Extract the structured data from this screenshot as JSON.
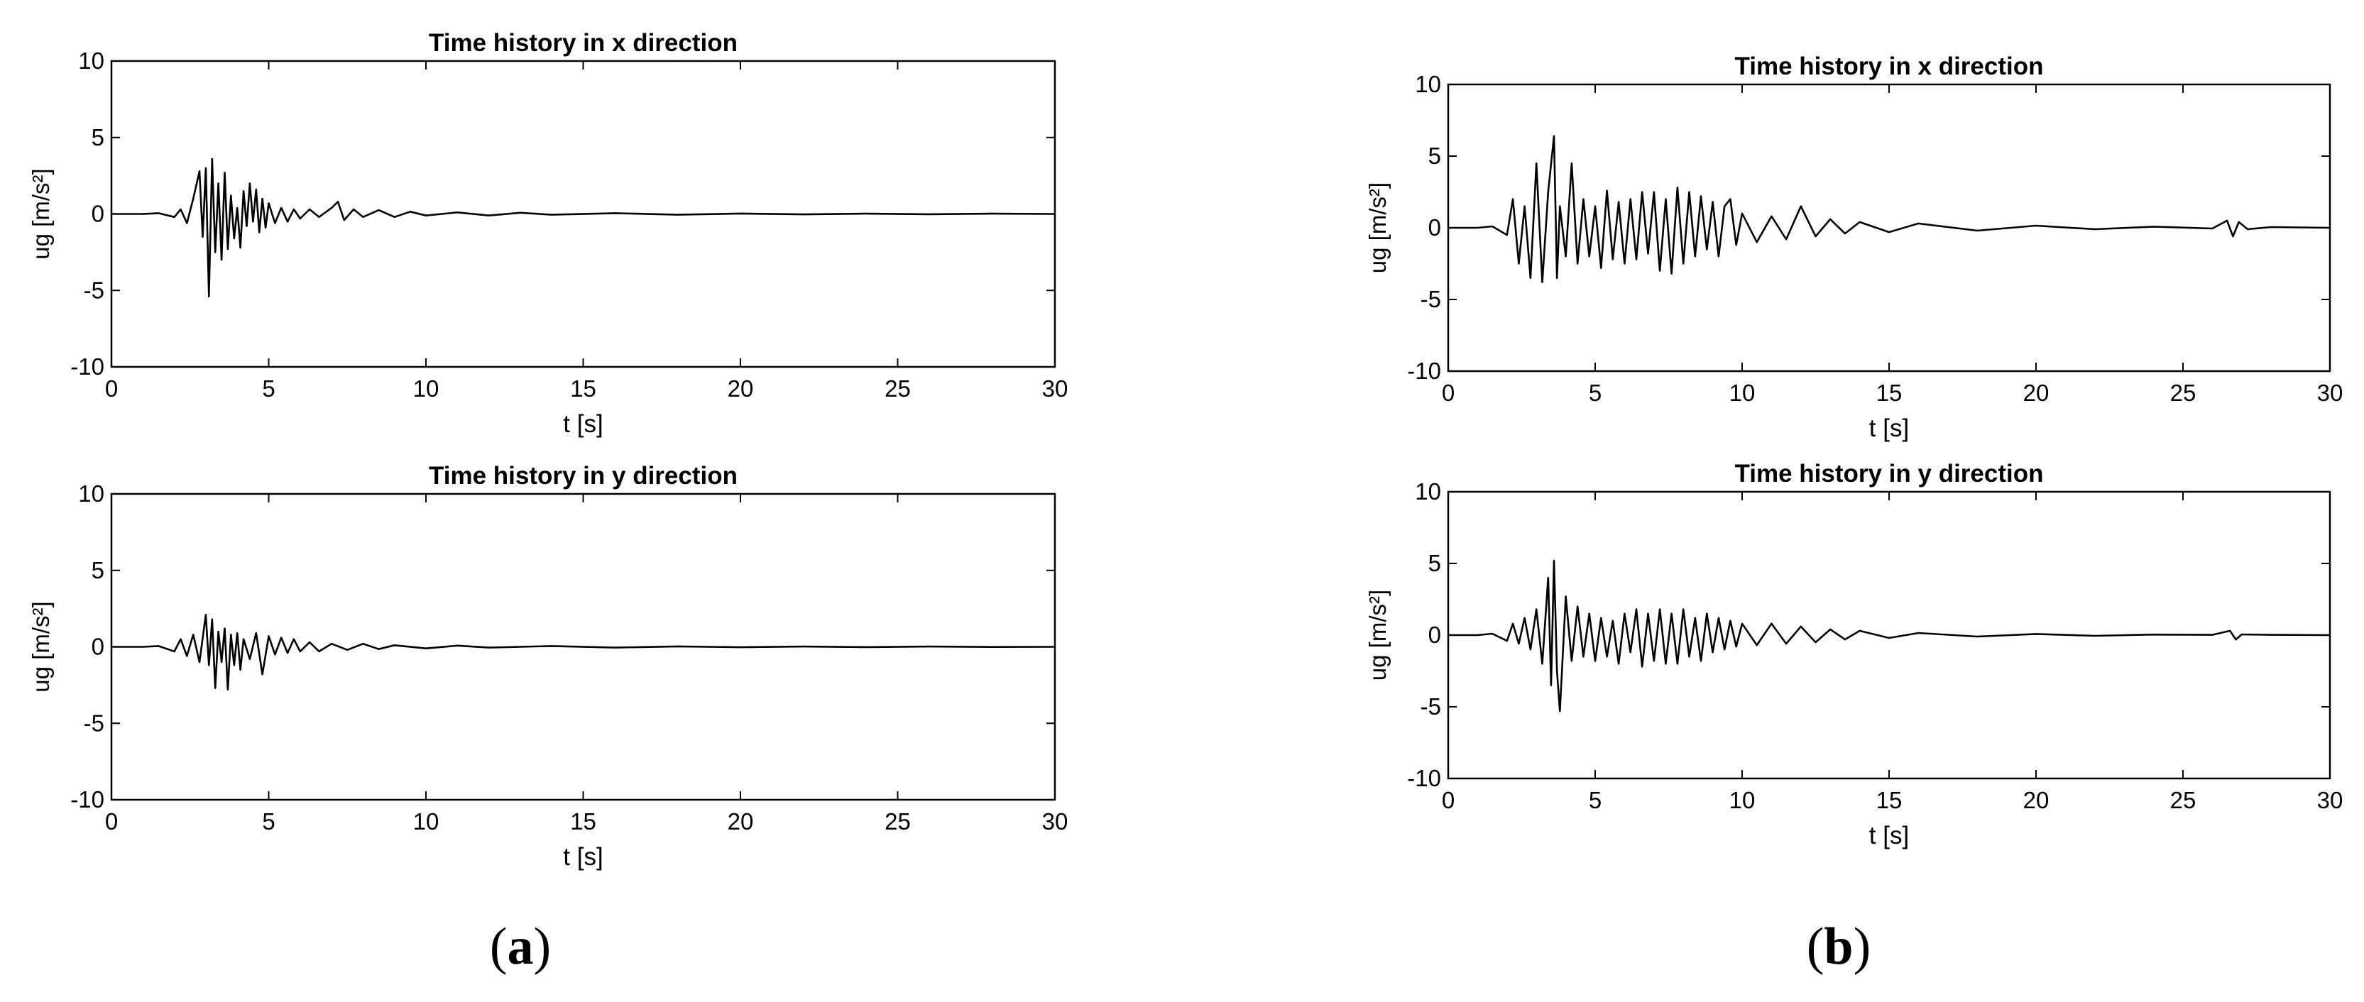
{
  "panel_labels": [
    {
      "pre": "(",
      "letter": "a",
      "post": ")"
    },
    {
      "pre": "(",
      "letter": "b",
      "post": ")"
    }
  ],
  "chart_data": [
    {
      "type": "line",
      "panel": "a",
      "title": "Time history in x direction",
      "xlabel": "t [s]",
      "ylabel": "ug [m/s²]",
      "xlim": [
        0,
        30
      ],
      "ylim": [
        -10,
        10
      ],
      "xticks": [
        0,
        5,
        10,
        15,
        20,
        25,
        30
      ],
      "yticks": [
        -10,
        -5,
        0,
        5,
        10
      ],
      "grid": false,
      "line_color": "#000000",
      "series": [
        {
          "x": [
            0,
            1,
            1.5,
            2,
            2.2,
            2.4,
            2.6,
            2.8,
            2.9,
            3.0,
            3.1,
            3.2,
            3.3,
            3.4,
            3.5,
            3.6,
            3.7,
            3.8,
            3.9,
            4.0,
            4.1,
            4.2,
            4.3,
            4.4,
            4.5,
            4.6,
            4.7,
            4.8,
            4.9,
            5.0,
            5.2,
            5.4,
            5.6,
            5.8,
            6.0,
            6.3,
            6.6,
            7.0,
            7.2,
            7.4,
            7.7,
            8,
            8.5,
            9,
            9.5,
            10,
            11,
            12,
            13,
            14,
            16,
            18,
            20,
            22,
            24,
            26,
            28,
            30
          ],
          "y": [
            0,
            0,
            0.05,
            -0.2,
            0.3,
            -0.6,
            1.0,
            2.8,
            -1.5,
            3.0,
            -5.4,
            3.6,
            -2.5,
            2.0,
            -3.0,
            2.7,
            -2.3,
            1.2,
            -1.6,
            0.4,
            -2.2,
            1.5,
            -0.8,
            2.0,
            -0.5,
            1.6,
            -1.2,
            1.0,
            -0.9,
            0.7,
            -0.6,
            0.4,
            -0.5,
            0.3,
            -0.3,
            0.3,
            -0.2,
            0.4,
            0.8,
            -0.4,
            0.3,
            -0.2,
            0.25,
            -0.2,
            0.15,
            -0.1,
            0.1,
            -0.1,
            0.08,
            -0.05,
            0.05,
            -0.05,
            0.03,
            -0.03,
            0.02,
            -0.02,
            0.02,
            0
          ]
        }
      ]
    },
    {
      "type": "line",
      "panel": "a",
      "title": "Time history in y direction",
      "xlabel": "t [s]",
      "ylabel": "ug [m/s²]",
      "xlim": [
        0,
        30
      ],
      "ylim": [
        -10,
        10
      ],
      "xticks": [
        0,
        5,
        10,
        15,
        20,
        25,
        30
      ],
      "yticks": [
        -10,
        -5,
        0,
        5,
        10
      ],
      "grid": false,
      "line_color": "#000000",
      "series": [
        {
          "x": [
            0,
            1,
            1.5,
            2,
            2.2,
            2.4,
            2.6,
            2.8,
            3.0,
            3.1,
            3.2,
            3.3,
            3.4,
            3.5,
            3.6,
            3.7,
            3.8,
            3.9,
            4.0,
            4.1,
            4.2,
            4.4,
            4.6,
            4.8,
            5.0,
            5.2,
            5.4,
            5.6,
            5.8,
            6.0,
            6.3,
            6.6,
            7,
            7.5,
            8,
            8.5,
            9,
            10,
            11,
            12,
            14,
            16,
            18,
            20,
            22,
            24,
            26,
            28,
            30
          ],
          "y": [
            0,
            0,
            0.05,
            -0.3,
            0.5,
            -0.6,
            0.8,
            -1.0,
            2.1,
            -1.2,
            1.8,
            -2.7,
            1.0,
            -1.0,
            1.2,
            -2.8,
            0.8,
            -1.2,
            0.9,
            -1.5,
            0.5,
            -0.8,
            0.9,
            -1.8,
            0.7,
            -0.5,
            0.6,
            -0.4,
            0.5,
            -0.3,
            0.3,
            -0.3,
            0.2,
            -0.2,
            0.2,
            -0.15,
            0.1,
            -0.1,
            0.08,
            -0.05,
            0.05,
            -0.05,
            0.03,
            -0.03,
            0.02,
            -0.02,
            0.02,
            -0.01,
            0
          ]
        }
      ]
    },
    {
      "type": "line",
      "panel": "b",
      "title": "Time history in x direction",
      "xlabel": "t [s]",
      "ylabel": "ug [m/s²]",
      "xlim": [
        0,
        30
      ],
      "ylim": [
        -10,
        10
      ],
      "xticks": [
        0,
        5,
        10,
        15,
        20,
        25,
        30
      ],
      "yticks": [
        -10,
        -5,
        0,
        5,
        10
      ],
      "grid": false,
      "line_color": "#000000",
      "series": [
        {
          "x": [
            0,
            1,
            1.5,
            2,
            2.2,
            2.4,
            2.6,
            2.8,
            3.0,
            3.2,
            3.4,
            3.6,
            3.7,
            3.8,
            4.0,
            4.2,
            4.4,
            4.6,
            4.8,
            5.0,
            5.2,
            5.4,
            5.6,
            5.8,
            6.0,
            6.2,
            6.4,
            6.6,
            6.8,
            7.0,
            7.2,
            7.4,
            7.6,
            7.8,
            8.0,
            8.2,
            8.4,
            8.6,
            8.8,
            9.0,
            9.2,
            9.4,
            9.6,
            9.8,
            10,
            10.5,
            11,
            11.5,
            12,
            12.5,
            13,
            13.5,
            14,
            15,
            16,
            18,
            20,
            22,
            24,
            26,
            26.5,
            26.7,
            26.9,
            27.2,
            28,
            30
          ],
          "y": [
            0,
            0,
            0.1,
            -0.5,
            2.0,
            -2.5,
            1.5,
            -3.5,
            4.5,
            -3.8,
            2.5,
            6.4,
            -3.5,
            1.5,
            -2.0,
            4.5,
            -2.5,
            2.0,
            -2.0,
            1.5,
            -2.8,
            2.6,
            -2.2,
            1.8,
            -2.5,
            2.0,
            -2.2,
            2.5,
            -1.8,
            2.5,
            -3.0,
            2.0,
            -3.2,
            2.8,
            -2.5,
            2.5,
            -2.0,
            2.2,
            -1.5,
            1.8,
            -2.0,
            1.5,
            2.0,
            -1.2,
            1.0,
            -1.0,
            0.8,
            -0.8,
            1.5,
            -0.6,
            0.6,
            -0.4,
            0.4,
            -0.3,
            0.3,
            -0.2,
            0.15,
            -0.1,
            0.08,
            -0.05,
            0.5,
            -0.6,
            0.4,
            -0.1,
            0.05,
            0
          ]
        }
      ]
    },
    {
      "type": "line",
      "panel": "b",
      "title": "Time history in y direction",
      "xlabel": "t [s]",
      "ylabel": "ug [m/s²]",
      "xlim": [
        0,
        30
      ],
      "ylim": [
        -10,
        10
      ],
      "xticks": [
        0,
        5,
        10,
        15,
        20,
        25,
        30
      ],
      "yticks": [
        -10,
        -5,
        0,
        5,
        10
      ],
      "grid": false,
      "line_color": "#000000",
      "series": [
        {
          "x": [
            0,
            1,
            1.5,
            2,
            2.2,
            2.4,
            2.6,
            2.8,
            3.0,
            3.2,
            3.4,
            3.5,
            3.6,
            3.7,
            3.8,
            4.0,
            4.2,
            4.4,
            4.6,
            4.8,
            5.0,
            5.2,
            5.4,
            5.6,
            5.8,
            6.0,
            6.2,
            6.4,
            6.6,
            6.8,
            7.0,
            7.2,
            7.4,
            7.6,
            7.8,
            8.0,
            8.2,
            8.4,
            8.6,
            8.8,
            9.0,
            9.2,
            9.4,
            9.6,
            9.8,
            10,
            10.5,
            11,
            11.5,
            12,
            12.5,
            13,
            13.5,
            14,
            15,
            16,
            18,
            20,
            22,
            24,
            26,
            26.6,
            26.8,
            27,
            28,
            30
          ],
          "y": [
            0,
            0,
            0.1,
            -0.4,
            0.8,
            -0.6,
            1.2,
            -1.0,
            1.8,
            -2.0,
            4.0,
            -3.5,
            5.2,
            -2.5,
            -5.3,
            2.7,
            -1.8,
            2.0,
            -1.5,
            1.5,
            -1.8,
            1.2,
            -1.5,
            1.0,
            -2.0,
            1.5,
            -1.2,
            1.8,
            -2.2,
            1.5,
            -1.8,
            1.8,
            -2.0,
            1.5,
            -2.0,
            1.8,
            -1.5,
            1.2,
            -1.8,
            1.5,
            -1.2,
            1.2,
            -1.0,
            1.0,
            -0.8,
            0.8,
            -0.7,
            0.8,
            -0.6,
            0.6,
            -0.5,
            0.4,
            -0.3,
            0.3,
            -0.2,
            0.15,
            -0.1,
            0.08,
            -0.05,
            0.04,
            0.02,
            0.3,
            -0.3,
            0.05,
            0.02,
            0
          ]
        }
      ]
    }
  ]
}
